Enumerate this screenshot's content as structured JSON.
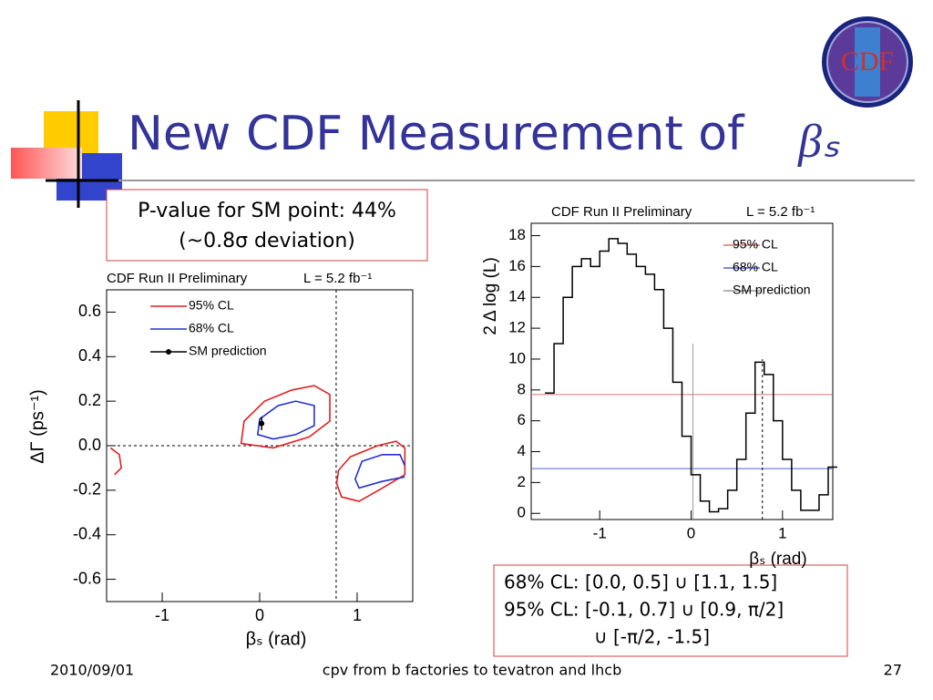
{
  "slide": {
    "title": "New CDF Measurement of",
    "title_symbol": "βₛ",
    "logo": "CDF",
    "pvalue_box": [
      "P-value for SM point: 44%",
      "(~0.8σ deviation)"
    ],
    "interval_box": [
      "68% CL: [0.0, 0.5] ∪ [1.1, 1.5]",
      "95% CL: [-0.1, 0.7] ∪ [0.9, π/2]",
      "∪ [-π/2, -1.5]"
    ],
    "footer": {
      "date": "2010/09/01",
      "center": "cpv from b factories to tevatron and lhcb",
      "page": "27"
    }
  },
  "chart_data": [
    {
      "type": "contour",
      "header": "CDF Run II Preliminary",
      "luminosity": "L = 5.2 fb⁻¹",
      "xlabel": "βₛ (rad)",
      "ylabel": "ΔΓ (ps⁻¹)",
      "xlim": [
        -1.5708,
        1.5708
      ],
      "ylim": [
        -0.7,
        0.7
      ],
      "xticks": [
        -1,
        0,
        1
      ],
      "yticks": [
        -0.6,
        -0.4,
        -0.2,
        {
          "value": 0,
          "label": "0.0"
        },
        0.2,
        0.4,
        0.6
      ],
      "ref_lines": {
        "x": 0.785,
        "y": 0
      },
      "series": [
        {
          "name": "95% CL",
          "color": "#e02020",
          "pieces": [
            {
              "closed": true,
              "x": [
                -0.19,
                -0.16,
                0.05,
                0.33,
                0.56,
                0.72,
                0.72,
                0.51,
                0.14
              ],
              "y": [
                0.01,
                0.11,
                0.2,
                0.25,
                0.27,
                0.23,
                0.11,
                0.04,
                -0.01
              ]
            },
            {
              "closed": true,
              "x": [
                0.81,
                0.93,
                1.21,
                1.4,
                1.49,
                1.49,
                1.26,
                1.02,
                0.84,
                0.79
              ],
              "y": [
                -0.11,
                -0.05,
                0,
                0.02,
                -0.01,
                -0.13,
                -0.19,
                -0.25,
                -0.23,
                -0.17
              ]
            },
            {
              "closed": false,
              "x": [
                -1.53,
                -1.44,
                -1.42,
                -1.49
              ],
              "y": [
                -0.01,
                -0.04,
                -0.1,
                -0.13
              ]
            }
          ]
        },
        {
          "name": "68% CL",
          "color": "#2030d0",
          "pieces": [
            {
              "closed": true,
              "x": [
                -0.02,
                0,
                0.19,
                0.37,
                0.56,
                0.56,
                0.37,
                0.14
              ],
              "y": [
                0.05,
                0.12,
                0.18,
                0.2,
                0.18,
                0.09,
                0.05,
                0.03
              ]
            },
            {
              "closed": false,
              "x": [
                1.49,
                1.44,
                1.26,
                1.05,
                0.98,
                1.02,
                1.26,
                1.49
              ],
              "y": [
                -0.09,
                -0.04,
                -0.04,
                -0.07,
                -0.15,
                -0.19,
                -0.16,
                -0.14
              ]
            }
          ]
        },
        {
          "name": "SM prediction",
          "color": "#000000",
          "point": {
            "x": 0.02,
            "y": 0.1,
            "error": 0.03
          }
        }
      ]
    },
    {
      "type": "step",
      "header": "CDF Run II Preliminary",
      "luminosity": "L = 5.2 fb⁻¹",
      "xlabel": "βₛ (rad)",
      "ylabel": "2 Δ log (L)",
      "xlim": [
        -1.75,
        1.55
      ],
      "ylim": [
        -0.4,
        18.8
      ],
      "xticks": [
        -1,
        0,
        1
      ],
      "yticks": [
        0,
        2,
        4,
        6,
        8,
        10,
        12,
        14,
        16,
        18
      ],
      "x": [
        -1.55,
        -1.45,
        -1.35,
        -1.25,
        -1.15,
        -1.05,
        -0.95,
        -0.85,
        -0.75,
        -0.65,
        -0.55,
        -0.45,
        -0.35,
        -0.25,
        -0.15,
        -0.05,
        0.05,
        0.15,
        0.25,
        0.35,
        0.45,
        0.55,
        0.65,
        0.75,
        0.85,
        0.95,
        1.05,
        1.15,
        1.25,
        1.35,
        1.45,
        1.55
      ],
      "values": [
        7.8,
        11,
        14,
        16,
        16.5,
        16,
        17,
        17.8,
        17.5,
        16.8,
        16,
        15.5,
        14.5,
        12,
        8.5,
        5,
        2.5,
        0.8,
        0.1,
        0.3,
        1.5,
        3.5,
        6.5,
        9.8,
        9,
        6,
        3.5,
        1.5,
        0.2,
        0.2,
        1.2,
        3
      ],
      "color": "#000000",
      "hlines": [
        {
          "name": "95% CL",
          "color": "#e07070",
          "value": 7.7
        },
        {
          "name": "68% CL",
          "color": "#5060e0",
          "value": 2.9
        }
      ],
      "vline": {
        "name": "SM prediction",
        "color": "#999999",
        "value": 0.02,
        "top": 11
      },
      "ref_line": {
        "x": 0.78,
        "top": 10
      }
    }
  ]
}
